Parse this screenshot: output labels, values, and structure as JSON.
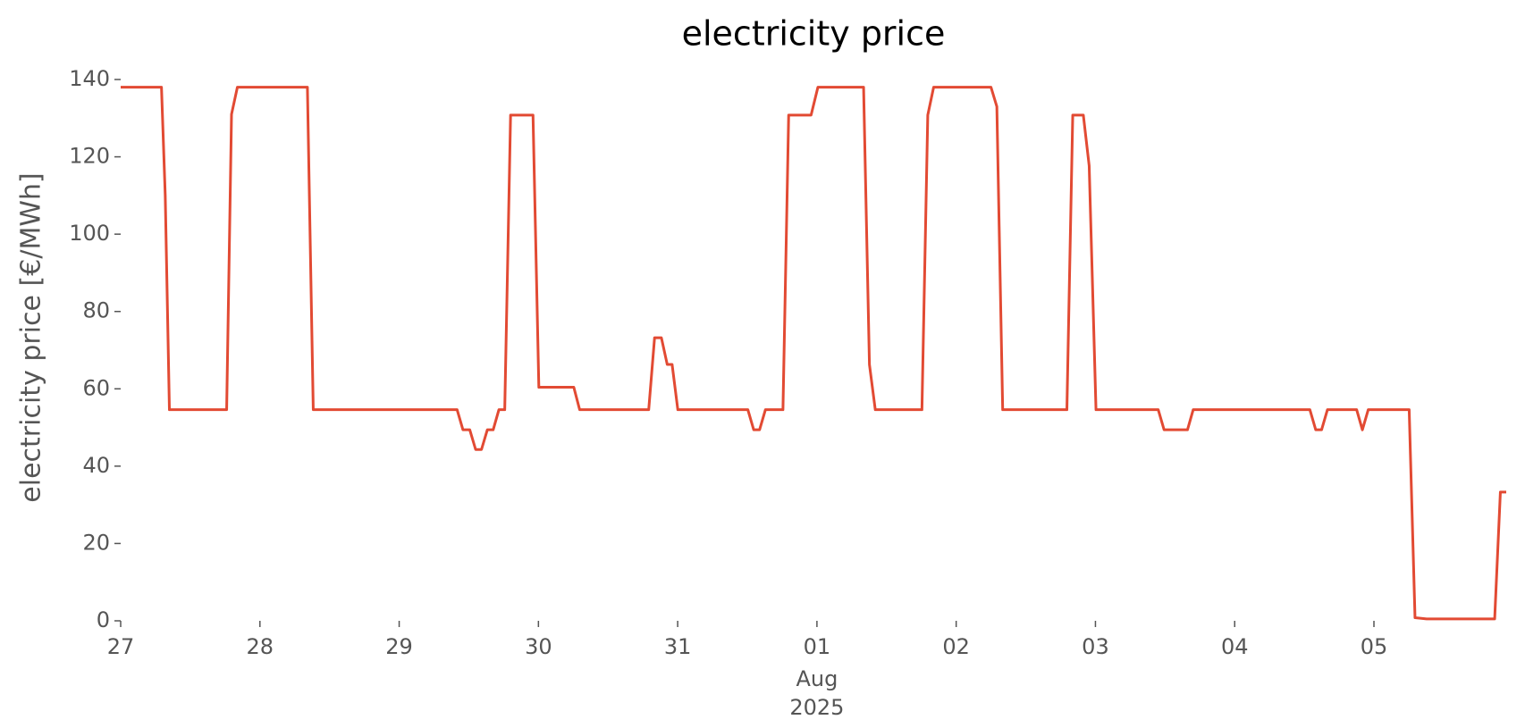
{
  "chart_data": {
    "type": "line",
    "title": "electricity price",
    "ylabel": "electricity price [€/MWh]",
    "x_month_label": "Aug",
    "x_year_label": "2025",
    "series": [
      {
        "name": "electricity price",
        "color": "#E24A33",
        "x": [
          0,
          0.293,
          0.32,
          0.35,
          0.761,
          0.796,
          0.838,
          1.341,
          1.383,
          2.416,
          2.458,
          2.507,
          2.549,
          2.591,
          2.633,
          2.675,
          2.716,
          2.758,
          2.8,
          2.961,
          3.003,
          3.254,
          3.296,
          3.792,
          3.834,
          3.883,
          3.925,
          3.96,
          4.001,
          4.504,
          4.546,
          4.588,
          4.63,
          4.756,
          4.797,
          4.958,
          5.007,
          5.335,
          5.377,
          5.419,
          5.754,
          5.796,
          5.838,
          6.25,
          6.292,
          6.334,
          6.795,
          6.837,
          6.913,
          6.955,
          7.004,
          7.451,
          7.493,
          7.661,
          7.702,
          8.54,
          8.582,
          8.624,
          8.666,
          8.876,
          8.917,
          8.959,
          9.253,
          9.295,
          9.378,
          9.867,
          9.908,
          9.95
        ],
        "values": [
          138,
          138,
          110,
          54.6,
          54.6,
          131,
          138,
          138,
          54.6,
          54.6,
          49.4,
          49.4,
          44.3,
          44.3,
          49.4,
          49.4,
          54.6,
          54.6,
          130.8,
          130.8,
          60.4,
          60.4,
          54.6,
          54.6,
          73.2,
          73.2,
          66.3,
          66.3,
          54.6,
          54.6,
          49.4,
          49.4,
          54.6,
          54.6,
          130.8,
          130.8,
          138,
          138,
          66.3,
          54.6,
          54.6,
          130.8,
          138,
          138,
          133,
          54.6,
          54.6,
          130.8,
          130.8,
          117.7,
          54.6,
          54.6,
          49.4,
          49.4,
          54.6,
          54.6,
          49.4,
          49.4,
          54.6,
          54.6,
          49.4,
          54.6,
          54.6,
          0.8,
          0.5,
          0.5,
          33.3,
          33.3
        ]
      }
    ],
    "xlim": [
      0,
      9.95
    ],
    "xticks": [
      {
        "value": 0,
        "label": "27"
      },
      {
        "value": 1,
        "label": "28"
      },
      {
        "value": 2,
        "label": "29"
      },
      {
        "value": 3,
        "label": "30"
      },
      {
        "value": 4,
        "label": "31"
      },
      {
        "value": 5,
        "label": "01"
      },
      {
        "value": 6,
        "label": "02"
      },
      {
        "value": 7,
        "label": "03"
      },
      {
        "value": 8,
        "label": "04"
      },
      {
        "value": 9,
        "label": "05"
      }
    ],
    "ylim": [
      0,
      140
    ],
    "yticks": [
      0,
      20,
      40,
      60,
      80,
      100,
      120,
      140
    ],
    "grid": false
  }
}
